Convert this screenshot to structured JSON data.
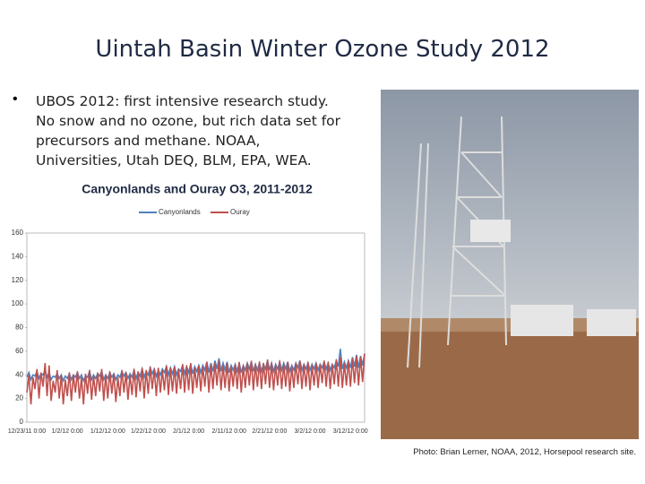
{
  "slide": {
    "title": "Uintah Basin Winter Ozone Study 2012",
    "bullet": "UBOS 2012: first intensive research study.  No snow and no ozone, but rich data set for precursors and methane.  NOAA, Universities, Utah DEQ, BLM, EPA, WEA.",
    "caption": "Photo: Brian Lerner, NOAA, 2012, Horsepool research site."
  },
  "chart_data": {
    "type": "line",
    "title": "Canyonlands and Ouray O3, 2011-2012",
    "categories": [
      "12/23/11 0:00",
      null,
      null,
      null,
      null,
      null,
      null,
      null,
      null,
      null,
      null,
      null,
      null,
      null,
      null,
      null,
      null,
      null,
      null,
      null,
      "1/2/12 0:00",
      null,
      null,
      null,
      null,
      null,
      null,
      null,
      null,
      null,
      null,
      null,
      null,
      null,
      null,
      null,
      null,
      null,
      null,
      null,
      "1/12/12 0:00",
      null,
      null,
      null,
      null,
      null,
      null,
      null,
      null,
      null,
      null,
      null,
      null,
      null,
      null,
      null,
      null,
      null,
      null,
      null,
      "1/22/12 0:00",
      null,
      null,
      null,
      null,
      null,
      null,
      null,
      null,
      null,
      null,
      null,
      null,
      null,
      null,
      null,
      null,
      null,
      null,
      null,
      "2/1/12 0:00",
      null,
      null,
      null,
      null,
      null,
      null,
      null,
      null,
      null,
      null,
      null,
      null,
      null,
      null,
      null,
      null,
      null,
      null,
      null,
      "2/11/12 0:00",
      null,
      null,
      null,
      null,
      null,
      null,
      null,
      null,
      null,
      null,
      null,
      null,
      null,
      null,
      null,
      null,
      null,
      null,
      null,
      "2/21/12 0:00",
      null,
      null,
      null,
      null,
      null,
      null,
      null,
      null,
      null,
      null,
      null,
      null,
      null,
      null,
      null,
      null,
      null,
      null,
      null,
      "3/2/12 0:00",
      null,
      null,
      null,
      null,
      null,
      null,
      null,
      null,
      null,
      null,
      null,
      null,
      null,
      null,
      null,
      null,
      null,
      null,
      null,
      "3/12/12 0:00",
      null,
      null,
      null,
      null,
      null,
      null,
      null
    ],
    "series": [
      {
        "name": "Canyonlands",
        "color": "#4f81bd",
        "values": [
          38,
          42,
          36,
          40,
          39,
          43,
          37,
          41,
          40,
          44,
          38,
          42,
          36,
          39,
          38,
          41,
          37,
          40,
          35,
          39,
          37,
          41,
          36,
          40,
          38,
          42,
          37,
          40,
          35,
          39,
          38,
          43,
          36,
          40,
          37,
          41,
          39,
          43,
          36,
          40,
          37,
          42,
          38,
          41,
          36,
          40,
          38,
          43,
          39,
          42,
          37,
          41,
          38,
          44,
          37,
          42,
          39,
          45,
          38,
          43,
          40,
          46,
          41,
          45,
          39,
          44,
          40,
          45,
          42,
          47,
          40,
          46,
          41,
          47,
          40,
          45,
          43,
          48,
          41,
          47,
          42,
          49,
          41,
          47,
          43,
          48,
          42,
          48,
          44,
          51,
          42,
          50,
          43,
          52,
          45,
          54,
          43,
          50,
          44,
          51,
          42,
          48,
          44,
          49,
          43,
          50,
          42,
          48,
          44,
          50,
          45,
          51,
          43,
          49,
          44,
          50,
          43,
          49,
          45,
          52,
          44,
          50,
          43,
          49,
          45,
          51,
          44,
          50,
          45,
          51,
          43,
          48,
          44,
          50,
          46,
          52,
          44,
          49,
          45,
          50,
          44,
          49,
          45,
          50,
          44,
          49,
          46,
          51,
          45,
          50,
          44,
          49,
          46,
          52,
          47,
          62,
          45,
          51,
          46,
          52,
          46,
          55,
          47,
          57,
          46,
          56,
          48,
          58
        ]
      },
      {
        "name": "Ouray",
        "color": "#c0504d",
        "values": [
          25,
          40,
          15,
          38,
          28,
          45,
          20,
          42,
          30,
          50,
          22,
          48,
          18,
          35,
          25,
          44,
          20,
          40,
          15,
          36,
          22,
          42,
          18,
          40,
          25,
          43,
          20,
          38,
          15,
          41,
          24,
          44,
          19,
          39,
          22,
          42,
          26,
          45,
          18,
          40,
          20,
          43,
          24,
          41,
          17,
          38,
          22,
          44,
          25,
          42,
          19,
          40,
          23,
          45,
          21,
          43,
          26,
          46,
          20,
          44,
          24,
          47,
          28,
          45,
          22,
          46,
          25,
          44,
          27,
          48,
          23,
          46,
          26,
          47,
          24,
          45,
          28,
          49,
          25,
          48,
          27,
          50,
          24,
          46,
          29,
          48,
          26,
          47,
          30,
          51,
          25,
          49,
          28,
          50,
          31,
          52,
          27,
          48,
          29,
          50,
          26,
          47,
          30,
          49,
          28,
          51,
          25,
          48,
          29,
          50,
          31,
          52,
          27,
          49,
          30,
          51,
          28,
          50,
          32,
          53,
          29,
          50,
          27,
          48,
          31,
          52,
          28,
          49,
          30,
          51,
          26,
          47,
          29,
          50,
          32,
          52,
          28,
          49,
          30,
          51,
          27,
          48,
          31,
          50,
          29,
          49,
          33,
          52,
          30,
          51,
          28,
          49,
          32,
          53,
          30,
          55,
          29,
          50,
          31,
          52,
          30,
          54,
          33,
          56,
          31,
          55,
          34,
          58
        ]
      }
    ],
    "ylim": [
      0,
      160
    ],
    "yticks": [
      0,
      20,
      40,
      60,
      80,
      100,
      120,
      140,
      160
    ],
    "grid": false,
    "legend": "top"
  }
}
